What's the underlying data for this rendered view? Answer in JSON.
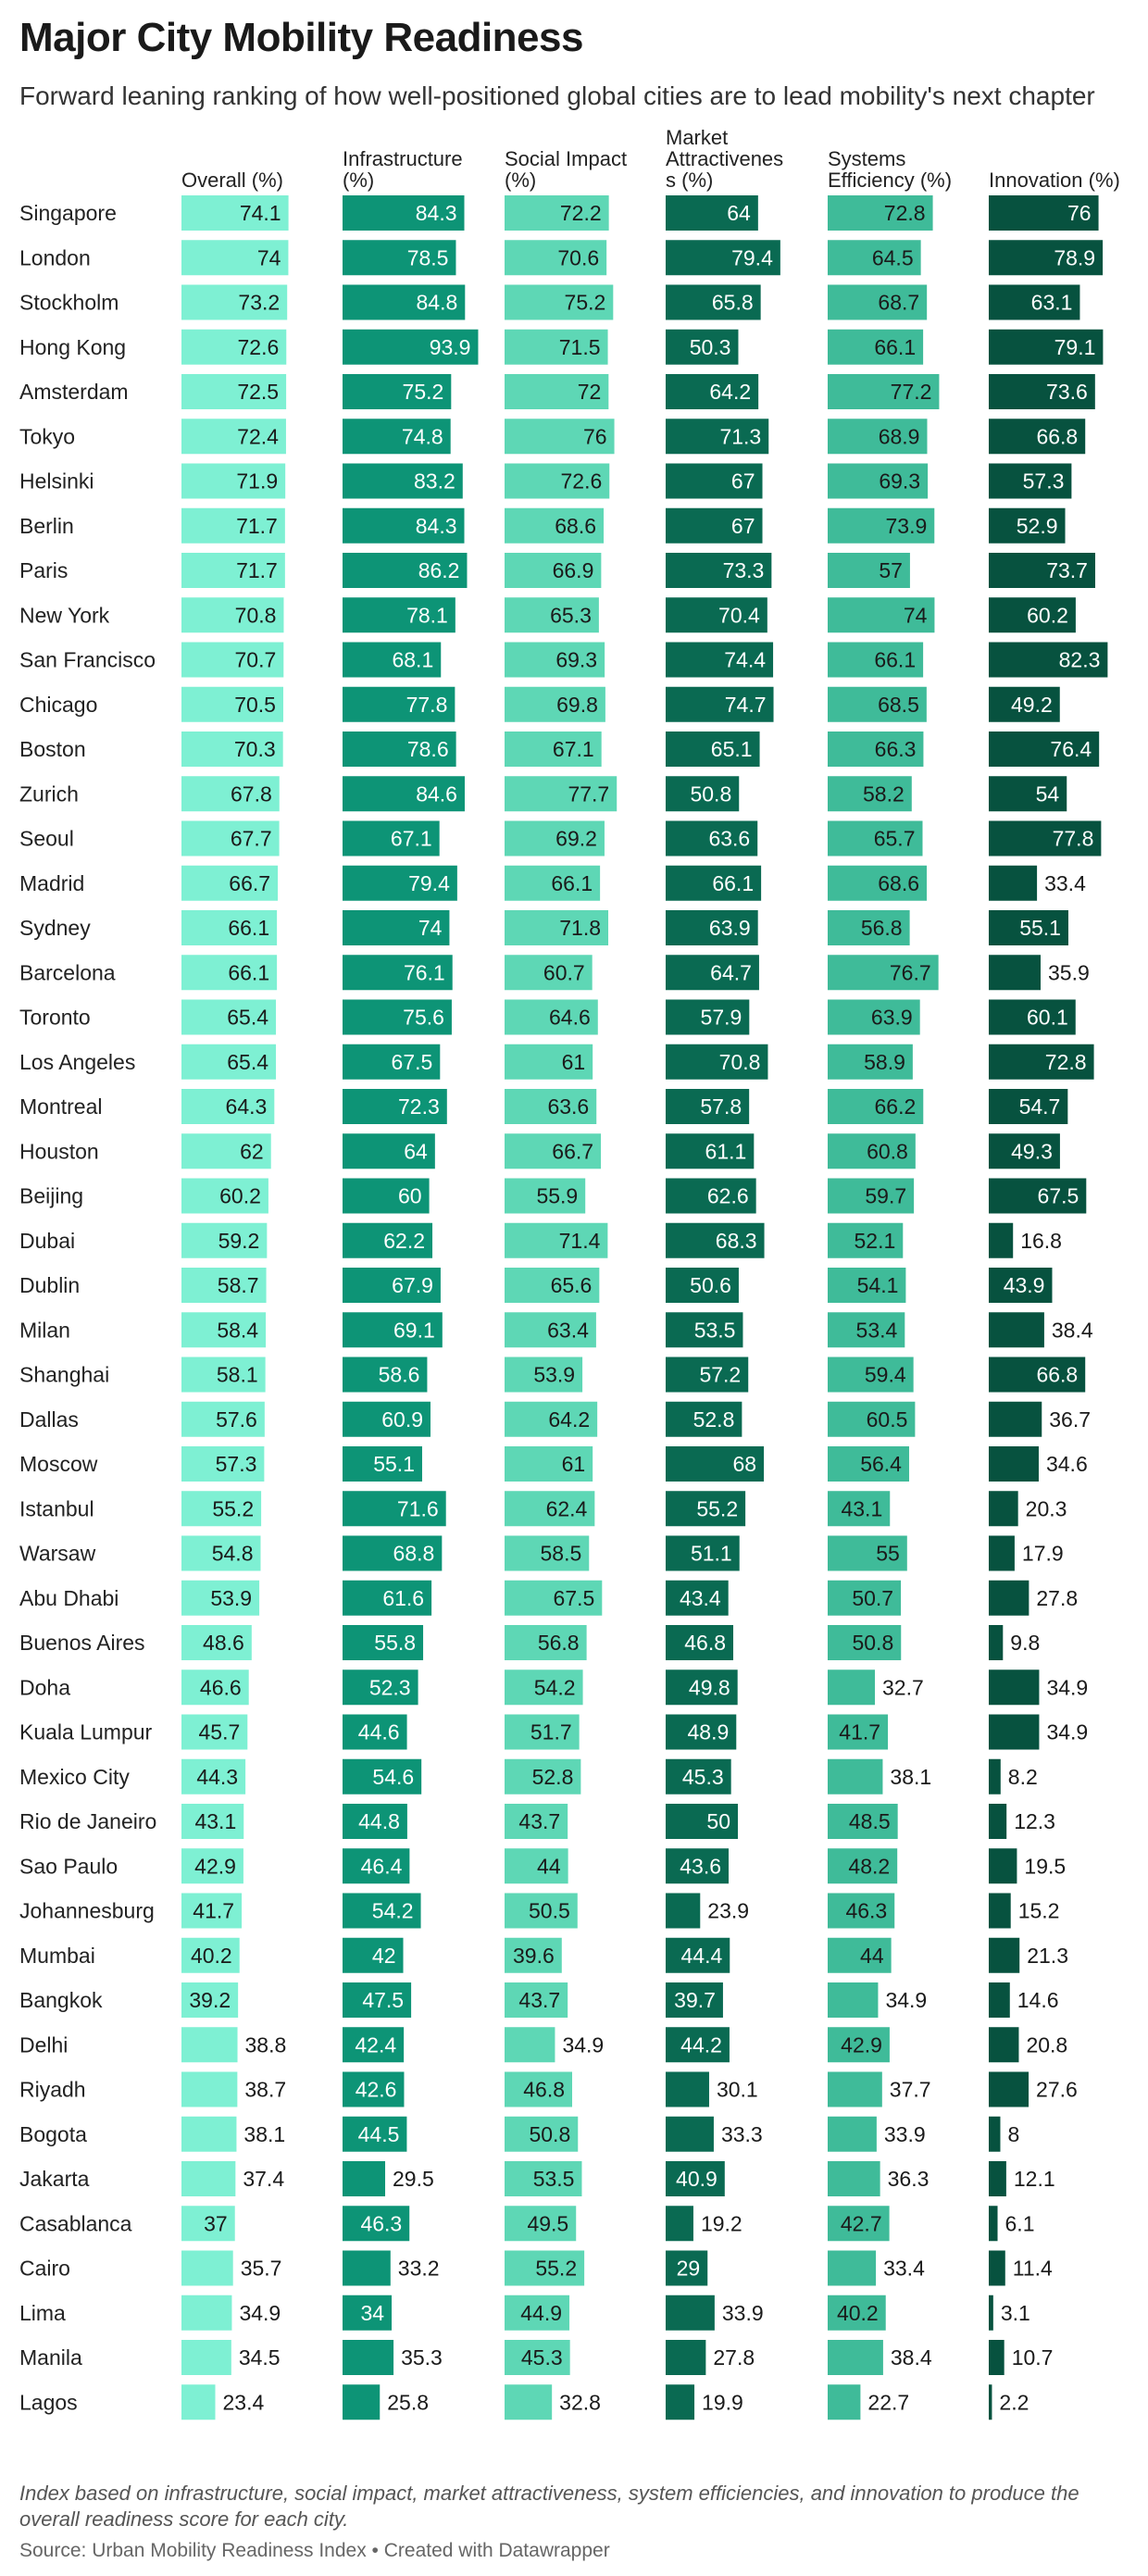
{
  "title": "Major City Mobility Readiness",
  "subtitle": "Forward leaning ranking of how well-positioned global cities are to lead mobility's next chapter",
  "notes": "Index based on infrastructure, social impact, market attractiveness, system efficiencies, and innovation to produce the overall readiness score for each city.",
  "source": {
    "label": "Source: Urban Mobility Readiness Index",
    "separator": " • ",
    "credit": "Created with Datawrapper"
  },
  "chart_data": {
    "type": "table",
    "columns": [
      {
        "header": [
          "Overall (%)"
        ],
        "color": "#7ef0d3"
      },
      {
        "header": [
          "Infrastructure",
          "(%)"
        ],
        "color": "#0d9476"
      },
      {
        "header": [
          "Social Impact",
          "(%)"
        ],
        "color": "#5ed7b5"
      },
      {
        "header": [
          "Market",
          "Attractivenes",
          "s (%)"
        ],
        "color": "#0a6a52"
      },
      {
        "header": [
          "Systems",
          "Efficiency (%)"
        ],
        "color": "#3fbb99"
      },
      {
        "header": [
          "Innovation (%)"
        ],
        "color": "#07523f"
      }
    ],
    "scale_max": 100,
    "rows": [
      {
        "city": "Singapore",
        "values": [
          74.1,
          84.3,
          72.2,
          64,
          72.8,
          76
        ]
      },
      {
        "city": "London",
        "values": [
          74,
          78.5,
          70.6,
          79.4,
          64.5,
          78.9
        ]
      },
      {
        "city": "Stockholm",
        "values": [
          73.2,
          84.8,
          75.2,
          65.8,
          68.7,
          63.1
        ]
      },
      {
        "city": "Hong Kong",
        "values": [
          72.6,
          93.9,
          71.5,
          50.3,
          66.1,
          79.1
        ]
      },
      {
        "city": "Amsterdam",
        "values": [
          72.5,
          75.2,
          72,
          64.2,
          77.2,
          73.6
        ]
      },
      {
        "city": "Tokyo",
        "values": [
          72.4,
          74.8,
          76,
          71.3,
          68.9,
          66.8
        ]
      },
      {
        "city": "Helsinki",
        "values": [
          71.9,
          83.2,
          72.6,
          67,
          69.3,
          57.3
        ]
      },
      {
        "city": "Berlin",
        "values": [
          71.7,
          84.3,
          68.6,
          67,
          73.9,
          52.9
        ]
      },
      {
        "city": "Paris",
        "values": [
          71.7,
          86.2,
          66.9,
          73.3,
          57,
          73.7
        ]
      },
      {
        "city": "New York",
        "values": [
          70.8,
          78.1,
          65.3,
          70.4,
          74,
          60.2
        ]
      },
      {
        "city": "San Francisco",
        "values": [
          70.7,
          68.1,
          69.3,
          74.4,
          66.1,
          82.3
        ]
      },
      {
        "city": "Chicago",
        "values": [
          70.5,
          77.8,
          69.8,
          74.7,
          68.5,
          49.2
        ]
      },
      {
        "city": "Boston",
        "values": [
          70.3,
          78.6,
          67.1,
          65.1,
          66.3,
          76.4
        ]
      },
      {
        "city": "Zurich",
        "values": [
          67.8,
          84.6,
          77.7,
          50.8,
          58.2,
          54
        ]
      },
      {
        "city": "Seoul",
        "values": [
          67.7,
          67.1,
          69.2,
          63.6,
          65.7,
          77.8
        ]
      },
      {
        "city": "Madrid",
        "values": [
          66.7,
          79.4,
          66.1,
          66.1,
          68.6,
          33.4
        ]
      },
      {
        "city": "Sydney",
        "values": [
          66.1,
          74,
          71.8,
          63.9,
          56.8,
          55.1
        ]
      },
      {
        "city": "Barcelona",
        "values": [
          66.1,
          76.1,
          60.7,
          64.7,
          76.7,
          35.9
        ]
      },
      {
        "city": "Toronto",
        "values": [
          65.4,
          75.6,
          64.6,
          57.9,
          63.9,
          60.1
        ]
      },
      {
        "city": "Los Angeles",
        "values": [
          65.4,
          67.5,
          61,
          70.8,
          58.9,
          72.8
        ]
      },
      {
        "city": "Montreal",
        "values": [
          64.3,
          72.3,
          63.6,
          57.8,
          66.2,
          54.7
        ]
      },
      {
        "city": "Houston",
        "values": [
          62,
          64,
          66.7,
          61.1,
          60.8,
          49.3
        ]
      },
      {
        "city": "Beijing",
        "values": [
          60.2,
          60,
          55.9,
          62.6,
          59.7,
          67.5
        ]
      },
      {
        "city": "Dubai",
        "values": [
          59.2,
          62.2,
          71.4,
          68.3,
          52.1,
          16.8
        ]
      },
      {
        "city": "Dublin",
        "values": [
          58.7,
          67.9,
          65.6,
          50.6,
          54.1,
          43.9
        ]
      },
      {
        "city": "Milan",
        "values": [
          58.4,
          69.1,
          63.4,
          53.5,
          53.4,
          38.4
        ]
      },
      {
        "city": "Shanghai",
        "values": [
          58.1,
          58.6,
          53.9,
          57.2,
          59.4,
          66.8
        ]
      },
      {
        "city": "Dallas",
        "values": [
          57.6,
          60.9,
          64.2,
          52.8,
          60.5,
          36.7
        ]
      },
      {
        "city": "Moscow",
        "values": [
          57.3,
          55.1,
          61,
          68,
          56.4,
          34.6
        ]
      },
      {
        "city": "Istanbul",
        "values": [
          55.2,
          71.6,
          62.4,
          55.2,
          43.1,
          20.3
        ]
      },
      {
        "city": "Warsaw",
        "values": [
          54.8,
          68.8,
          58.5,
          51.1,
          55,
          17.9
        ]
      },
      {
        "city": "Abu Dhabi",
        "values": [
          53.9,
          61.6,
          67.5,
          43.4,
          50.7,
          27.8
        ]
      },
      {
        "city": "Buenos Aires",
        "values": [
          48.6,
          55.8,
          56.8,
          46.8,
          50.8,
          9.8
        ]
      },
      {
        "city": "Doha",
        "values": [
          46.6,
          52.3,
          54.2,
          49.8,
          32.7,
          34.9
        ]
      },
      {
        "city": "Kuala Lumpur",
        "values": [
          45.7,
          44.6,
          51.7,
          48.9,
          41.7,
          34.9
        ]
      },
      {
        "city": "Mexico City",
        "values": [
          44.3,
          54.6,
          52.8,
          45.3,
          38.1,
          8.2
        ]
      },
      {
        "city": "Rio de Janeiro",
        "values": [
          43.1,
          44.8,
          43.7,
          50,
          48.5,
          12.3
        ]
      },
      {
        "city": "Sao Paulo",
        "values": [
          42.9,
          46.4,
          44,
          43.6,
          48.2,
          19.5
        ]
      },
      {
        "city": "Johannesburg",
        "values": [
          41.7,
          54.2,
          50.5,
          23.9,
          46.3,
          15.2
        ]
      },
      {
        "city": "Mumbai",
        "values": [
          40.2,
          42,
          39.6,
          44.4,
          44,
          21.3
        ]
      },
      {
        "city": "Bangkok",
        "values": [
          39.2,
          47.5,
          43.7,
          39.7,
          34.9,
          14.6
        ]
      },
      {
        "city": "Delhi",
        "values": [
          38.8,
          42.4,
          34.9,
          44.2,
          42.9,
          20.8
        ]
      },
      {
        "city": "Riyadh",
        "values": [
          38.7,
          42.6,
          46.8,
          30.1,
          37.7,
          27.6
        ]
      },
      {
        "city": "Bogota",
        "values": [
          38.1,
          44.5,
          50.8,
          33.3,
          33.9,
          8
        ]
      },
      {
        "city": "Jakarta",
        "values": [
          37.4,
          29.5,
          53.5,
          40.9,
          36.3,
          12.1
        ]
      },
      {
        "city": "Casablanca",
        "values": [
          37,
          46.3,
          49.5,
          19.2,
          42.7,
          6.1
        ]
      },
      {
        "city": "Cairo",
        "values": [
          35.7,
          33.2,
          55.2,
          29,
          33.4,
          11.4
        ]
      },
      {
        "city": "Lima",
        "values": [
          34.9,
          34,
          44.9,
          33.9,
          40.2,
          3.1
        ]
      },
      {
        "city": "Manila",
        "values": [
          34.5,
          35.3,
          45.3,
          27.8,
          38.4,
          10.7
        ]
      },
      {
        "city": "Lagos",
        "values": [
          23.4,
          25.8,
          32.8,
          19.9,
          22.7,
          2.2
        ]
      }
    ]
  }
}
